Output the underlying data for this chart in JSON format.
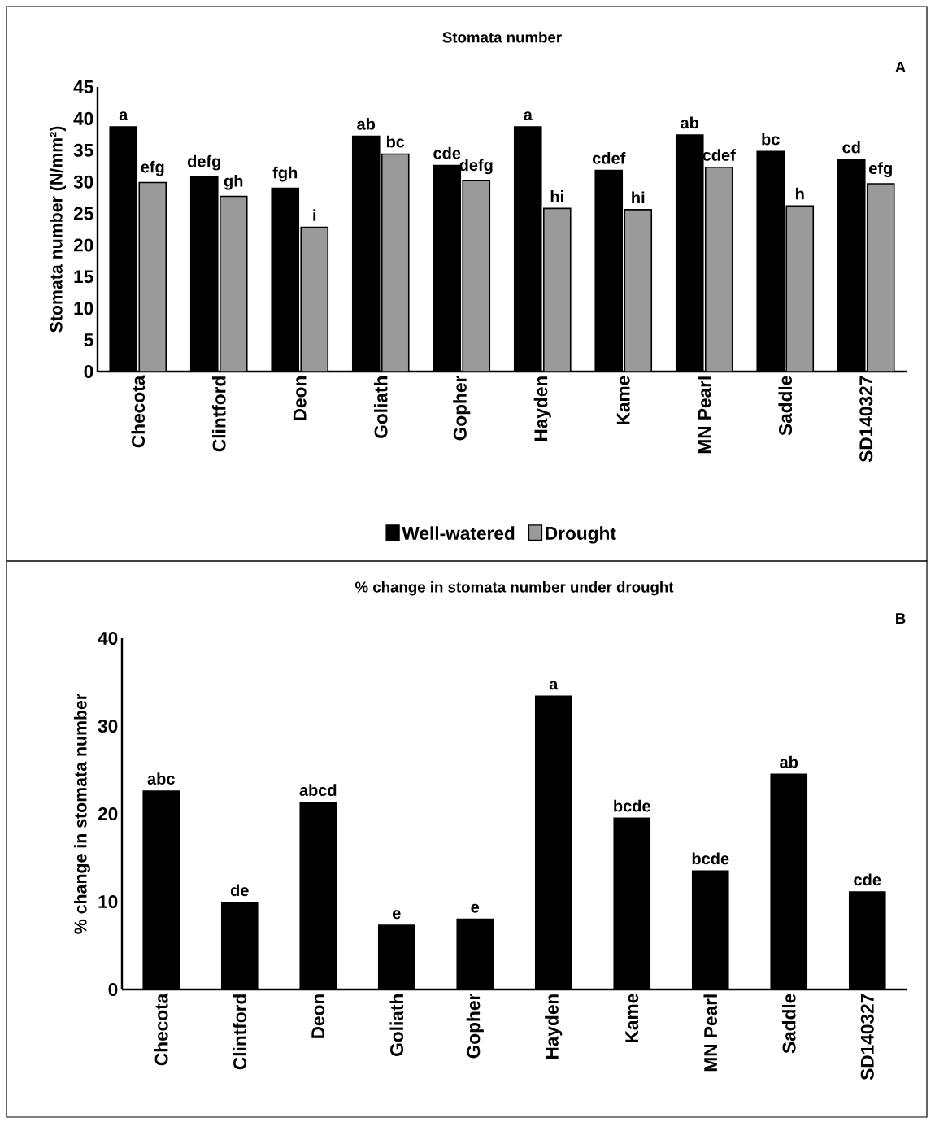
{
  "chart_data": [
    {
      "type": "bar",
      "title": "Stomata number",
      "ylabel": "Stomata number (N/mm²)",
      "annotations": [
        "A"
      ],
      "categories": [
        "Checota",
        "Clintford",
        "Deon",
        "Goliath",
        "Gopher",
        "Hayden",
        "Kame",
        "MN Pearl",
        "Saddle",
        "SD140327"
      ],
      "series": [
        {
          "name": "Well-watered",
          "color": "#000000",
          "values": [
            38.7,
            30.8,
            29.0,
            37.2,
            32.6,
            38.7,
            31.8,
            37.4,
            34.8,
            33.5
          ],
          "value_labels": [
            "a",
            "defg",
            "fgh",
            "ab",
            "cde",
            "a",
            "cdef",
            "ab",
            "bc",
            "cd"
          ]
        },
        {
          "name": "Drought",
          "color": "#9a9a9a",
          "values": [
            29.9,
            27.7,
            22.8,
            34.4,
            30.2,
            25.8,
            25.6,
            32.3,
            26.2,
            29.7
          ],
          "value_labels": [
            "efg",
            "gh",
            "i",
            "bc",
            "defg",
            "hi",
            "hi",
            "cdef",
            "h",
            "efg"
          ]
        }
      ],
      "ylim": [
        0,
        45
      ],
      "yticks": [
        0,
        5,
        10,
        15,
        20,
        25,
        30,
        35,
        40,
        45
      ],
      "grid": false,
      "legend": "bottom"
    },
    {
      "type": "bar",
      "title": "% change in stomata number under drought",
      "ylabel": "% change in stomata number",
      "annotations": [
        "B"
      ],
      "categories": [
        "Checota",
        "Clintford",
        "Deon",
        "Goliath",
        "Gopher",
        "Hayden",
        "Kame",
        "MN Pearl",
        "Saddle",
        "SD140327"
      ],
      "series": [
        {
          "color": "#000000",
          "values": [
            22.6,
            9.9,
            21.3,
            7.3,
            8.0,
            33.4,
            19.5,
            13.5,
            24.5,
            11.1
          ],
          "value_labels": [
            "abc",
            "de",
            "abcd",
            "e",
            "e",
            "a",
            "bcde",
            "bcde",
            "ab",
            "cde"
          ]
        }
      ],
      "ylim": [
        0,
        40
      ],
      "yticks": [
        0,
        10,
        20,
        30,
        40
      ],
      "grid": false,
      "legend": false
    }
  ]
}
